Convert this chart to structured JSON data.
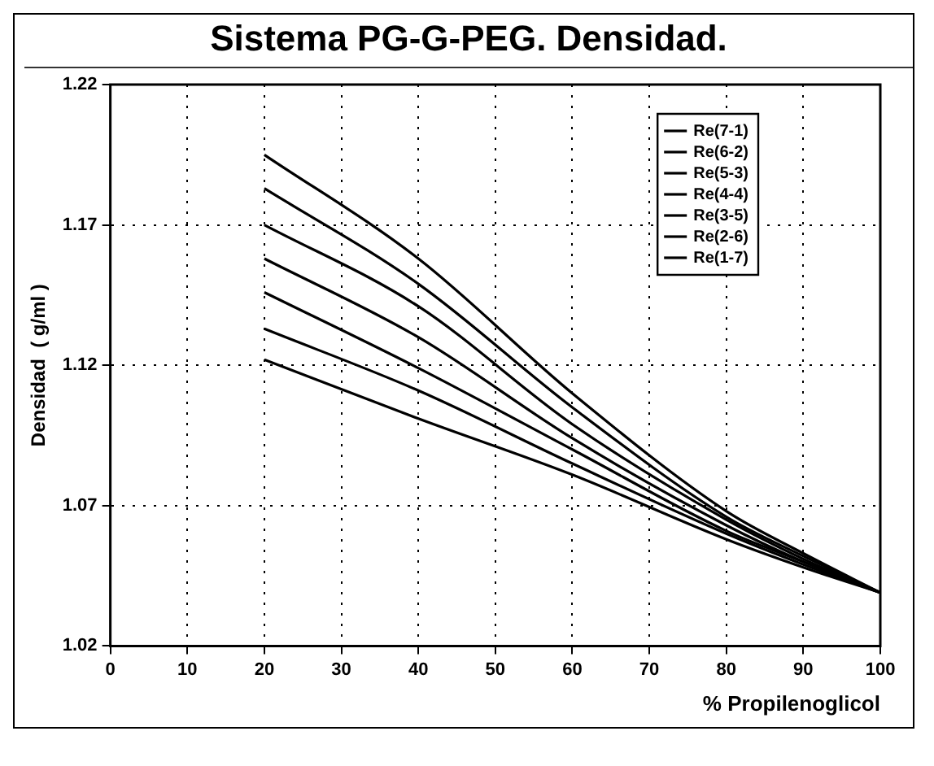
{
  "chart_data": {
    "type": "line",
    "title": "Sistema PG-G-PEG. Densidad.",
    "xlabel": "% Propilenoglicol",
    "ylabel": "Densidad  ( g/ml )",
    "x": [
      20,
      40,
      60,
      80,
      90,
      100
    ],
    "xlim": [
      0,
      100
    ],
    "xticks": [
      0,
      10,
      20,
      30,
      40,
      50,
      60,
      70,
      80,
      90,
      100
    ],
    "ylim": [
      1.02,
      1.22
    ],
    "yticks": [
      1.02,
      1.07,
      1.12,
      1.17,
      1.22
    ],
    "grid": true,
    "legend": "top right",
    "marker": "none",
    "line_style": "solid",
    "series": [
      {
        "name": "Re(7-1)",
        "color": "#000000",
        "values": [
          1.195,
          1.158,
          1.11,
          1.068,
          1.053,
          1.039
        ]
      },
      {
        "name": "Re(6-2)",
        "color": "#000000",
        "values": [
          1.183,
          1.149,
          1.105,
          1.066,
          1.052,
          1.039
        ]
      },
      {
        "name": "Re(5-3)",
        "color": "#000000",
        "values": [
          1.17,
          1.141,
          1.099,
          1.065,
          1.051,
          1.039
        ]
      },
      {
        "name": "Re(4-4)",
        "color": "#000000",
        "values": [
          1.158,
          1.13,
          1.094,
          1.063,
          1.05,
          1.039
        ]
      },
      {
        "name": "Re(3-5)",
        "color": "#000000",
        "values": [
          1.146,
          1.119,
          1.09,
          1.061,
          1.05,
          1.039
        ]
      },
      {
        "name": "Re(2-6)",
        "color": "#000000",
        "values": [
          1.133,
          1.111,
          1.085,
          1.06,
          1.049,
          1.039
        ]
      },
      {
        "name": "Re(1-7)",
        "color": "#000000",
        "values": [
          1.122,
          1.101,
          1.081,
          1.058,
          1.048,
          1.039
        ]
      }
    ]
  }
}
